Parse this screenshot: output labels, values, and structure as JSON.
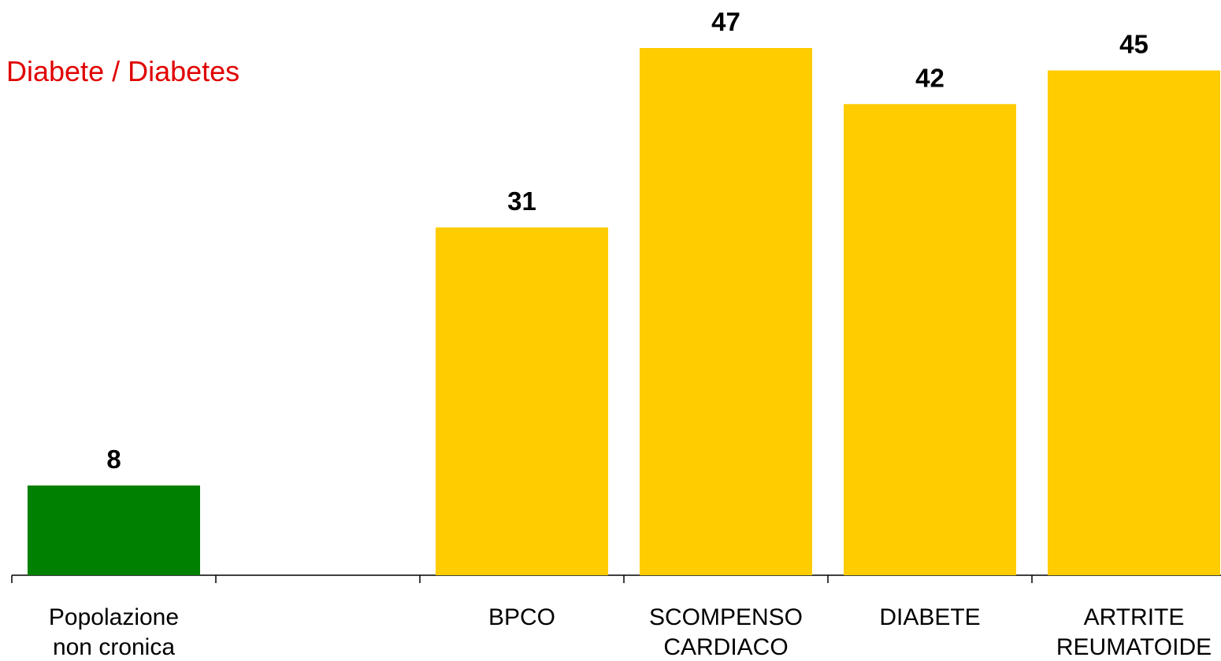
{
  "chart_data": {
    "type": "bar",
    "title": "Diabete / Diabetes",
    "title_color": "#E00000",
    "categories": [
      [
        "Popolazione",
        "non cronica"
      ],
      [
        ""
      ],
      [
        "BPCO"
      ],
      [
        "SCOMPENSO",
        "CARDIACO"
      ],
      [
        "DIABETE"
      ],
      [
        "ARTRITE",
        "REUMATOIDE"
      ]
    ],
    "values": [
      8,
      null,
      31,
      47,
      42,
      45
    ],
    "data_labels": [
      "8",
      "",
      "31",
      "47",
      "42",
      "45"
    ],
    "bar_colors": [
      "#008000",
      "#FFCC00",
      "#FFCC00",
      "#FFCC00",
      "#FFCC00",
      "#FFCC00"
    ],
    "ylim": [
      0,
      50
    ],
    "grid": false,
    "legend": "none",
    "xlabel": "",
    "ylabel": ""
  }
}
